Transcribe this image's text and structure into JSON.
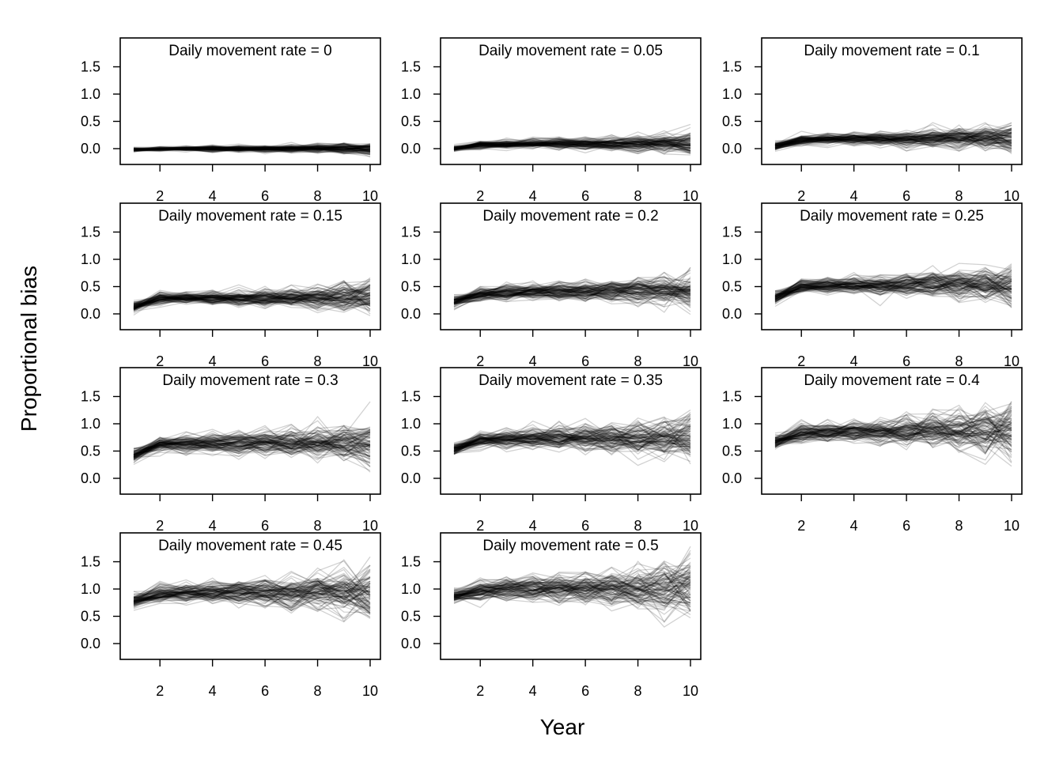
{
  "figure": {
    "xlabel": "Year",
    "ylabel": "Proportional bias"
  },
  "chart_data": {
    "type": "line",
    "panel_count": 11,
    "x_ticks": [
      2,
      4,
      6,
      8,
      10
    ],
    "y_ticks": [
      0.0,
      0.5,
      1.0,
      1.5
    ],
    "y_tick_labels": [
      "0.0",
      "0.5",
      "1.0",
      "1.5"
    ],
    "x_tick_labels": [
      "2",
      "4",
      "6",
      "8",
      "10"
    ],
    "xlim": [
      1,
      10
    ],
    "ylim": [
      -0.25,
      1.95
    ],
    "years": [
      1,
      2,
      3,
      4,
      5,
      6,
      7,
      8,
      9,
      10
    ],
    "lines_per_panel": 100,
    "line_color": "#000000",
    "line_alpha": 0.18,
    "grid": false,
    "legend": "none",
    "panels": [
      {
        "title": "Daily movement rate = 0",
        "rate": 0,
        "mean_bias": [
          -0.02,
          -0.01,
          0.0,
          0.0,
          0.0,
          0.0,
          0.0,
          0.0,
          0.0,
          -0.02
        ],
        "spread": [
          0.02,
          0.02,
          0.02,
          0.03,
          0.03,
          0.03,
          0.04,
          0.05,
          0.05,
          0.07
        ]
      },
      {
        "title": "Daily movement rate = 0.05",
        "rate": 0.05,
        "mean_bias": [
          0.0,
          0.07,
          0.08,
          0.09,
          0.09,
          0.09,
          0.09,
          0.1,
          0.1,
          0.1
        ],
        "spread": [
          0.03,
          0.04,
          0.04,
          0.05,
          0.06,
          0.06,
          0.07,
          0.08,
          0.09,
          0.12
        ]
      },
      {
        "title": "Daily movement rate = 0.1",
        "rate": 0.1,
        "mean_bias": [
          0.05,
          0.16,
          0.18,
          0.18,
          0.18,
          0.18,
          0.19,
          0.19,
          0.2,
          0.2
        ],
        "spread": [
          0.04,
          0.05,
          0.05,
          0.06,
          0.07,
          0.08,
          0.09,
          0.1,
          0.11,
          0.14
        ]
      },
      {
        "title": "Daily movement rate = 0.15",
        "rate": 0.15,
        "mean_bias": [
          0.13,
          0.28,
          0.3,
          0.3,
          0.29,
          0.29,
          0.3,
          0.3,
          0.3,
          0.32
        ],
        "spread": [
          0.05,
          0.06,
          0.06,
          0.07,
          0.08,
          0.09,
          0.1,
          0.12,
          0.14,
          0.17
        ]
      },
      {
        "title": "Daily movement rate = 0.2",
        "rate": 0.2,
        "mean_bias": [
          0.22,
          0.37,
          0.39,
          0.4,
          0.4,
          0.41,
          0.41,
          0.41,
          0.42,
          0.4
        ],
        "spread": [
          0.05,
          0.07,
          0.08,
          0.08,
          0.09,
          0.1,
          0.12,
          0.13,
          0.15,
          0.18
        ]
      },
      {
        "title": "Daily movement rate = 0.25",
        "rate": 0.25,
        "mean_bias": [
          0.3,
          0.5,
          0.52,
          0.53,
          0.53,
          0.53,
          0.54,
          0.53,
          0.53,
          0.52
        ],
        "spread": [
          0.06,
          0.07,
          0.08,
          0.09,
          0.1,
          0.11,
          0.13,
          0.15,
          0.17,
          0.2
        ]
      },
      {
        "title": "Daily movement rate = 0.3",
        "rate": 0.3,
        "mean_bias": [
          0.42,
          0.62,
          0.64,
          0.65,
          0.64,
          0.65,
          0.66,
          0.67,
          0.66,
          0.65
        ],
        "spread": [
          0.06,
          0.08,
          0.09,
          0.1,
          0.11,
          0.12,
          0.14,
          0.16,
          0.19,
          0.24
        ]
      },
      {
        "title": "Daily movement rate = 0.35",
        "rate": 0.35,
        "mean_bias": [
          0.53,
          0.7,
          0.72,
          0.73,
          0.73,
          0.74,
          0.75,
          0.75,
          0.76,
          0.76
        ],
        "spread": [
          0.06,
          0.08,
          0.09,
          0.1,
          0.12,
          0.13,
          0.15,
          0.17,
          0.2,
          0.26
        ]
      },
      {
        "title": "Daily movement rate = 0.4",
        "rate": 0.4,
        "mean_bias": [
          0.67,
          0.83,
          0.85,
          0.86,
          0.86,
          0.86,
          0.87,
          0.87,
          0.87,
          0.88
        ],
        "spread": [
          0.07,
          0.09,
          0.1,
          0.11,
          0.12,
          0.14,
          0.16,
          0.18,
          0.22,
          0.28
        ]
      },
      {
        "title": "Daily movement rate = 0.45",
        "rate": 0.45,
        "mean_bias": [
          0.78,
          0.92,
          0.93,
          0.94,
          0.94,
          0.94,
          0.95,
          0.95,
          0.95,
          0.97
        ],
        "spread": [
          0.07,
          0.09,
          0.1,
          0.11,
          0.13,
          0.15,
          0.17,
          0.19,
          0.23,
          0.3
        ]
      },
      {
        "title": "Daily movement rate = 0.5",
        "rate": 0.5,
        "mean_bias": [
          0.87,
          0.98,
          0.99,
          1.0,
          1.0,
          1.0,
          1.01,
          1.01,
          1.02,
          1.03
        ],
        "spread": [
          0.07,
          0.09,
          0.1,
          0.12,
          0.13,
          0.15,
          0.17,
          0.2,
          0.24,
          0.3
        ]
      }
    ]
  }
}
